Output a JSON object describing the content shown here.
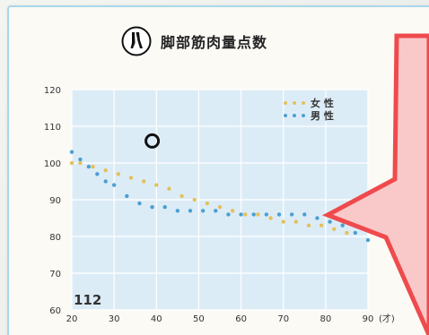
{
  "header": {
    "title": "脚部筋肉量点数",
    "icon": "legs-icon"
  },
  "score": "112",
  "chart_data": {
    "type": "scatter",
    "title": "脚部筋肉量点数",
    "xlim": [
      20,
      90
    ],
    "ylim": [
      60,
      120
    ],
    "x_ticks": [
      "20",
      "30",
      "40",
      "50",
      "60",
      "70",
      "80",
      "90"
    ],
    "x_unit": "(才)",
    "y_ticks": [
      "60",
      "70",
      "80",
      "90",
      "100",
      "110",
      "120"
    ],
    "grid": true,
    "legend_position": "top-right",
    "series": [
      {
        "name": "女 性",
        "color": "#e3c15a",
        "points": [
          [
            20,
            100
          ],
          [
            22,
            100
          ],
          [
            25,
            99
          ],
          [
            28,
            98
          ],
          [
            31,
            97
          ],
          [
            34,
            96
          ],
          [
            37,
            95
          ],
          [
            40,
            94
          ],
          [
            43,
            93
          ],
          [
            46,
            91
          ],
          [
            49,
            90
          ],
          [
            52,
            89
          ],
          [
            55,
            88
          ],
          [
            58,
            87
          ],
          [
            61,
            86
          ],
          [
            64,
            86
          ],
          [
            67,
            85
          ],
          [
            70,
            84
          ],
          [
            73,
            84
          ],
          [
            76,
            83
          ],
          [
            79,
            83
          ],
          [
            82,
            82
          ],
          [
            85,
            81
          ]
        ]
      },
      {
        "name": "男 性",
        "color": "#4c9fd1",
        "points": [
          [
            20,
            103
          ],
          [
            22,
            101
          ],
          [
            24,
            99
          ],
          [
            26,
            97
          ],
          [
            28,
            95
          ],
          [
            30,
            94
          ],
          [
            33,
            91
          ],
          [
            36,
            89
          ],
          [
            39,
            88
          ],
          [
            42,
            88
          ],
          [
            45,
            87
          ],
          [
            48,
            87
          ],
          [
            51,
            87
          ],
          [
            54,
            87
          ],
          [
            57,
            86
          ],
          [
            60,
            86
          ],
          [
            63,
            86
          ],
          [
            66,
            86
          ],
          [
            69,
            86
          ],
          [
            72,
            86
          ],
          [
            75,
            86
          ],
          [
            78,
            85
          ],
          [
            81,
            84
          ],
          [
            84,
            83
          ],
          [
            87,
            81
          ],
          [
            90,
            79
          ]
        ]
      }
    ],
    "annotations": [
      {
        "label": "circle-marker",
        "x": 39,
        "y": 106
      }
    ]
  },
  "callout": {
    "color": "#ef4a4d",
    "fill": "#f9c9c9"
  }
}
